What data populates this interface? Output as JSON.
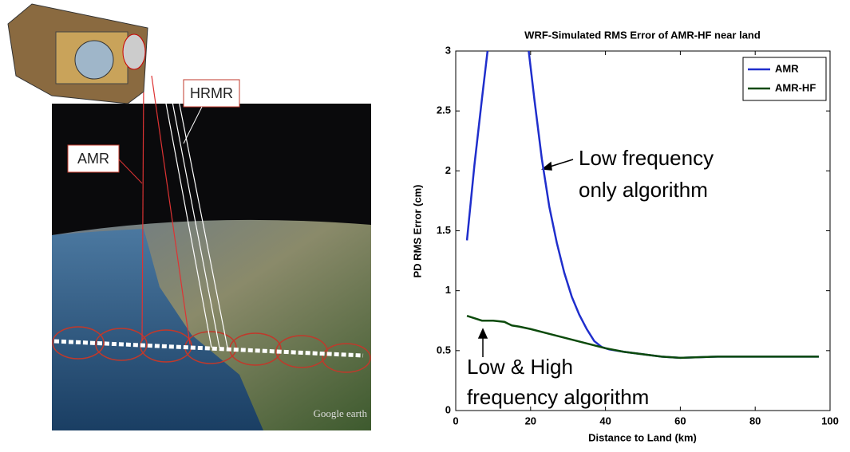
{
  "illustration": {
    "labels": [
      "HRMR",
      "AMR"
    ],
    "credit": "Google earth"
  },
  "chart_data": {
    "type": "line",
    "title": "WRF-Simulated RMS Error of AMR-HF near land",
    "xlabel": "Distance to Land (km)",
    "ylabel": "PD RMS Error (cm)",
    "xlim": [
      0,
      100
    ],
    "xticks": [
      0,
      20,
      40,
      60,
      80,
      100
    ],
    "ylim": [
      0,
      3
    ],
    "yticks": [
      0,
      0.5,
      1,
      1.5,
      2,
      2.5,
      3
    ],
    "legend": "upper right",
    "series": [
      {
        "name": "AMR",
        "color": "#1f2ecc",
        "x": [
          3,
          5,
          7,
          8.5,
          14,
          19.5,
          21,
          23,
          25,
          27,
          29,
          31,
          33,
          35,
          37,
          39,
          41,
          45,
          50,
          55,
          60,
          70,
          80,
          90,
          97
        ],
        "values": [
          1.42,
          2.05,
          2.6,
          3.0,
          null,
          3.0,
          2.6,
          2.1,
          1.7,
          1.4,
          1.15,
          0.95,
          0.8,
          0.68,
          0.58,
          0.53,
          0.51,
          0.49,
          0.47,
          0.45,
          0.44,
          0.45,
          0.45,
          0.45,
          0.45
        ]
      },
      {
        "name": "AMR-HF",
        "color": "#0b4a0b",
        "x": [
          3,
          5,
          7,
          10,
          13,
          15,
          17,
          20,
          25,
          30,
          35,
          40,
          45,
          50,
          55,
          60,
          70,
          80,
          90,
          97
        ],
        "values": [
          0.79,
          0.77,
          0.75,
          0.75,
          0.74,
          0.71,
          0.7,
          0.68,
          0.64,
          0.6,
          0.56,
          0.52,
          0.49,
          0.47,
          0.45,
          0.44,
          0.45,
          0.45,
          0.45,
          0.45
        ]
      }
    ],
    "annotations": [
      "Low frequency",
      "only algorithm",
      "Low & High",
      "frequency algorithm"
    ]
  }
}
